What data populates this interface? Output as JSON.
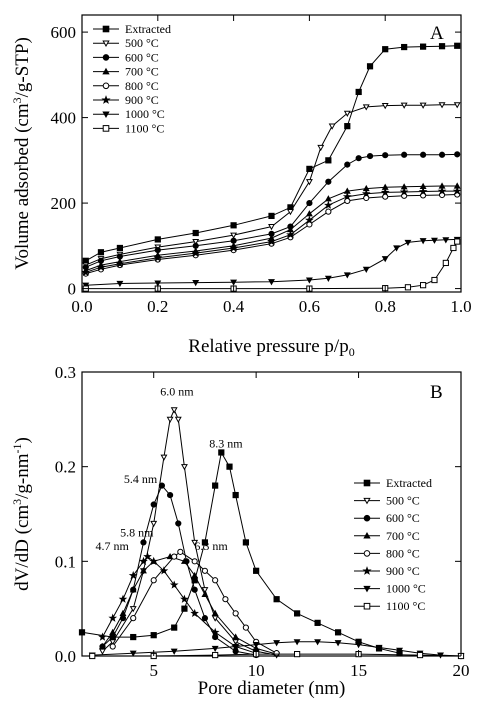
{
  "chart_data": [
    {
      "panel": "A",
      "type": "line",
      "title": "",
      "xlabel": "Relative pressure p/p",
      "xlabel_sub": "0",
      "ylabel": "Volume adsorbed (cm",
      "ylabel_sup": "3",
      "ylabel_tail": "/g-STP)",
      "xlim": [
        0.0,
        1.0
      ],
      "ylim": [
        -8,
        640
      ],
      "xticks": [
        "0.0",
        "0.2",
        "0.4",
        "0.6",
        "0.8",
        "1.0"
      ],
      "yticks": [
        "0",
        "200",
        "400",
        "600"
      ],
      "legend_position": "top-left",
      "series": [
        {
          "name": "Extracted",
          "marker": "square-filled",
          "x": [
            0.01,
            0.05,
            0.1,
            0.2,
            0.3,
            0.4,
            0.5,
            0.55,
            0.6,
            0.65,
            0.7,
            0.73,
            0.76,
            0.8,
            0.85,
            0.9,
            0.95,
            0.99
          ],
          "y": [
            65,
            85,
            95,
            115,
            130,
            148,
            170,
            190,
            280,
            300,
            380,
            460,
            520,
            560,
            565,
            566,
            567,
            568
          ]
        },
        {
          "name": "500 °C",
          "marker": "triangle-down-open",
          "x": [
            0.01,
            0.05,
            0.1,
            0.2,
            0.3,
            0.4,
            0.5,
            0.55,
            0.6,
            0.63,
            0.66,
            0.7,
            0.75,
            0.8,
            0.85,
            0.9,
            0.95,
            0.99
          ],
          "y": [
            55,
            70,
            80,
            97,
            110,
            125,
            145,
            180,
            250,
            330,
            380,
            410,
            425,
            428,
            429,
            429,
            430,
            430
          ]
        },
        {
          "name": "600 °C",
          "marker": "circle-filled",
          "x": [
            0.01,
            0.05,
            0.1,
            0.2,
            0.3,
            0.4,
            0.5,
            0.55,
            0.6,
            0.65,
            0.7,
            0.73,
            0.76,
            0.8,
            0.85,
            0.9,
            0.95,
            0.99
          ],
          "y": [
            50,
            65,
            75,
            90,
            100,
            112,
            128,
            145,
            200,
            250,
            290,
            305,
            310,
            312,
            313,
            313,
            313,
            314
          ]
        },
        {
          "name": "700 °C",
          "marker": "triangle-up-filled",
          "x": [
            0.01,
            0.05,
            0.1,
            0.2,
            0.3,
            0.4,
            0.5,
            0.55,
            0.6,
            0.65,
            0.7,
            0.75,
            0.8,
            0.85,
            0.9,
            0.95,
            0.99
          ],
          "y": [
            42,
            55,
            63,
            78,
            88,
            100,
            118,
            138,
            175,
            210,
            228,
            234,
            237,
            238,
            239,
            240,
            240
          ]
        },
        {
          "name": "800 °C",
          "marker": "circle-open",
          "x": [
            0.01,
            0.05,
            0.1,
            0.2,
            0.3,
            0.4,
            0.5,
            0.55,
            0.6,
            0.65,
            0.7,
            0.75,
            0.8,
            0.85,
            0.9,
            0.95,
            0.99
          ],
          "y": [
            35,
            45,
            55,
            68,
            78,
            90,
            105,
            120,
            150,
            180,
            205,
            212,
            215,
            217,
            218,
            219,
            220
          ]
        },
        {
          "name": "900 °C",
          "marker": "star",
          "x": [
            0.01,
            0.05,
            0.1,
            0.2,
            0.3,
            0.4,
            0.5,
            0.55,
            0.6,
            0.65,
            0.7,
            0.75,
            0.8,
            0.85,
            0.9,
            0.95,
            0.99
          ],
          "y": [
            38,
            50,
            58,
            72,
            83,
            95,
            110,
            126,
            160,
            195,
            215,
            222,
            225,
            226,
            227,
            228,
            228
          ]
        },
        {
          "name": "1000 °C",
          "marker": "triangle-down-filled",
          "x": [
            0.01,
            0.1,
            0.2,
            0.3,
            0.4,
            0.5,
            0.6,
            0.65,
            0.7,
            0.75,
            0.8,
            0.83,
            0.86,
            0.9,
            0.93,
            0.96,
            0.99
          ],
          "y": [
            8,
            12,
            13,
            14,
            15,
            16,
            20,
            24,
            32,
            45,
            70,
            95,
            108,
            112,
            113,
            114,
            115
          ]
        },
        {
          "name": "1100 °C",
          "marker": "square-open",
          "x": [
            0.01,
            0.2,
            0.4,
            0.6,
            0.8,
            0.86,
            0.9,
            0.93,
            0.96,
            0.98,
            0.99
          ],
          "y": [
            0,
            0,
            0,
            0,
            1,
            3,
            8,
            20,
            60,
            95,
            110
          ]
        }
      ]
    },
    {
      "panel": "B",
      "type": "line",
      "title": "",
      "xlabel": "Pore diameter (nm)",
      "ylabel": "dV/dD (cm",
      "ylabel_sup": "3",
      "ylabel_tail": "/g-nm",
      "ylabel_sup2": "-1",
      "ylabel_end": ")",
      "xlim": [
        1.5,
        20
      ],
      "ylim": [
        0.0,
        0.3
      ],
      "xticks": [
        "5",
        "10",
        "15",
        "20"
      ],
      "yticks": [
        "0.0",
        "0.1",
        "0.2",
        "0.3"
      ],
      "legend_position": "right",
      "annotations": [
        "6.0 nm",
        "8.3 nm",
        "5.4 nm",
        "5.8 nm",
        "4.7 nm",
        "6.3 nm"
      ],
      "series": [
        {
          "name": "Extracted",
          "marker": "square-filled",
          "x": [
            1.5,
            3,
            4,
            5,
            6,
            6.5,
            7,
            7.5,
            8,
            8.3,
            8.7,
            9,
            9.5,
            10,
            11,
            12,
            13,
            14,
            15,
            16,
            17
          ],
          "y": [
            0.025,
            0.02,
            0.02,
            0.022,
            0.03,
            0.05,
            0.08,
            0.12,
            0.18,
            0.215,
            0.2,
            0.17,
            0.12,
            0.09,
            0.06,
            0.045,
            0.035,
            0.025,
            0.015,
            0.008,
            0.003
          ]
        },
        {
          "name": "500 °C",
          "marker": "triangle-down-open",
          "x": [
            2.5,
            3,
            4,
            4.5,
            5,
            5.5,
            5.8,
            6.0,
            6.2,
            6.5,
            7,
            7.5,
            8,
            9,
            10,
            11
          ],
          "y": [
            0.005,
            0.015,
            0.05,
            0.09,
            0.14,
            0.21,
            0.25,
            0.26,
            0.25,
            0.2,
            0.12,
            0.07,
            0.04,
            0.015,
            0.005,
            0.001
          ]
        },
        {
          "name": "600 °C",
          "marker": "circle-filled",
          "x": [
            2.5,
            3,
            3.5,
            4,
            4.5,
            5,
            5.4,
            5.8,
            6.2,
            6.6,
            7,
            7.5,
            8,
            9,
            10
          ],
          "y": [
            0.01,
            0.02,
            0.04,
            0.07,
            0.12,
            0.16,
            0.18,
            0.17,
            0.14,
            0.1,
            0.07,
            0.04,
            0.02,
            0.005,
            0.001
          ]
        },
        {
          "name": "700 °C",
          "marker": "triangle-up-filled",
          "x": [
            2.5,
            3,
            3.5,
            4,
            4.5,
            5,
            5.8,
            6.5,
            7,
            7.5,
            8,
            9,
            10,
            11
          ],
          "y": [
            0.01,
            0.025,
            0.045,
            0.07,
            0.09,
            0.1,
            0.105,
            0.1,
            0.085,
            0.065,
            0.045,
            0.02,
            0.008,
            0.002
          ]
        },
        {
          "name": "800 °C",
          "marker": "circle-open",
          "x": [
            3,
            4,
            5,
            6,
            6.3,
            7,
            7.5,
            8,
            8.5,
            9,
            9.5,
            10,
            11
          ],
          "y": [
            0.01,
            0.04,
            0.08,
            0.105,
            0.11,
            0.1,
            0.09,
            0.08,
            0.06,
            0.045,
            0.03,
            0.015,
            0.003
          ]
        },
        {
          "name": "900 °C",
          "marker": "star",
          "x": [
            2.5,
            3,
            3.5,
            4,
            4.5,
            4.7,
            5,
            5.5,
            6,
            6.5,
            7,
            8,
            9,
            10
          ],
          "y": [
            0.02,
            0.04,
            0.06,
            0.085,
            0.1,
            0.105,
            0.1,
            0.09,
            0.075,
            0.06,
            0.045,
            0.025,
            0.01,
            0.003
          ]
        },
        {
          "name": "1000 °C",
          "marker": "triangle-down-filled",
          "x": [
            2,
            4,
            6,
            8,
            9,
            10,
            11,
            12,
            13,
            14,
            15,
            16,
            17,
            18,
            19,
            20
          ],
          "y": [
            0.001,
            0.003,
            0.005,
            0.008,
            0.01,
            0.012,
            0.014,
            0.015,
            0.015,
            0.014,
            0.012,
            0.009,
            0.006,
            0.003,
            0.001,
            0.0
          ]
        },
        {
          "name": "1100 °C",
          "marker": "square-open",
          "x": [
            2,
            5,
            8,
            10,
            12,
            15,
            18,
            20
          ],
          "y": [
            0.0,
            0.0,
            0.001,
            0.002,
            0.002,
            0.002,
            0.001,
            0.0
          ]
        }
      ]
    }
  ]
}
